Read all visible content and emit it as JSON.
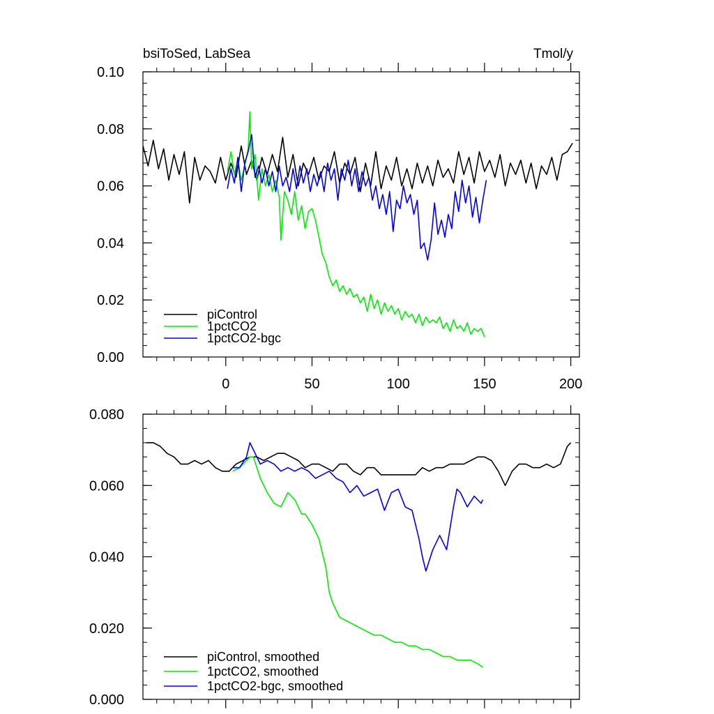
{
  "colors": {
    "piControl": "#000000",
    "1pctCO2": "#00ee00",
    "1pctCO2-bgc": "#0000ee"
  },
  "chart_data": [
    {
      "type": "line",
      "title": "bsiToSed, LabSea",
      "units": "Tmol/y",
      "xlabel": "",
      "ylabel": "",
      "xlim": [
        -48,
        205
      ],
      "ylim": [
        0.0,
        0.1
      ],
      "xticks": [
        "0",
        "50",
        "100",
        "150",
        "200"
      ],
      "xtick_values": [
        0,
        50,
        100,
        150,
        200
      ],
      "yticks": [
        "0.00",
        "0.02",
        "0.04",
        "0.06",
        "0.08",
        "0.10"
      ],
      "ytick_values": [
        0.0,
        0.02,
        0.04,
        0.06,
        0.08,
        0.1
      ],
      "legend_position": "bottom-left",
      "series": [
        {
          "name": "piControl",
          "color_key": "piControl",
          "x": [
            -48,
            -45,
            -42,
            -39,
            -36,
            -33,
            -30,
            -27,
            -24,
            -21,
            -18,
            -15,
            -12,
            -9,
            -6,
            -3,
            0,
            3,
            6,
            9,
            12,
            15,
            18,
            21,
            24,
            27,
            30,
            33,
            36,
            39,
            42,
            45,
            48,
            51,
            54,
            57,
            60,
            63,
            66,
            69,
            72,
            75,
            78,
            81,
            84,
            87,
            90,
            93,
            96,
            99,
            102,
            105,
            108,
            111,
            114,
            117,
            120,
            123,
            126,
            129,
            132,
            135,
            138,
            141,
            144,
            147,
            150,
            153,
            156,
            159,
            162,
            165,
            168,
            171,
            174,
            177,
            180,
            183,
            186,
            189,
            192,
            195,
            198,
            201
          ],
          "values": [
            0.074,
            0.067,
            0.076,
            0.066,
            0.073,
            0.062,
            0.071,
            0.064,
            0.072,
            0.054,
            0.07,
            0.062,
            0.067,
            0.065,
            0.061,
            0.07,
            0.062,
            0.068,
            0.063,
            0.074,
            0.064,
            0.069,
            0.062,
            0.07,
            0.064,
            0.071,
            0.065,
            0.077,
            0.063,
            0.071,
            0.06,
            0.068,
            0.064,
            0.07,
            0.062,
            0.067,
            0.065,
            0.072,
            0.061,
            0.068,
            0.064,
            0.07,
            0.058,
            0.068,
            0.06,
            0.072,
            0.059,
            0.067,
            0.062,
            0.07,
            0.06,
            0.066,
            0.059,
            0.068,
            0.061,
            0.067,
            0.06,
            0.069,
            0.063,
            0.066,
            0.061,
            0.072,
            0.064,
            0.07,
            0.061,
            0.072,
            0.065,
            0.069,
            0.063,
            0.071,
            0.06,
            0.068,
            0.064,
            0.069,
            0.061,
            0.068,
            0.059,
            0.067,
            0.064,
            0.07,
            0.062,
            0.071,
            0.072,
            0.075
          ]
        },
        {
          "name": "1pctCO2",
          "color_key": "1pctCO2",
          "x": [
            1,
            3,
            5,
            7,
            9,
            11,
            13,
            14,
            15,
            17,
            19,
            21,
            23,
            25,
            27,
            29,
            31,
            32,
            34,
            36,
            38,
            40,
            42,
            44,
            46,
            48,
            50,
            52,
            54,
            56,
            58,
            60,
            62,
            64,
            66,
            68,
            70,
            72,
            74,
            76,
            78,
            80,
            82,
            84,
            86,
            88,
            90,
            92,
            94,
            96,
            98,
            100,
            102,
            104,
            106,
            108,
            110,
            112,
            114,
            116,
            118,
            120,
            122,
            124,
            126,
            128,
            130,
            132,
            134,
            136,
            138,
            140,
            142,
            144,
            146,
            148,
            150
          ],
          "values": [
            0.065,
            0.072,
            0.064,
            0.069,
            0.062,
            0.067,
            0.073,
            0.086,
            0.066,
            0.071,
            0.055,
            0.066,
            0.06,
            0.064,
            0.058,
            0.062,
            0.056,
            0.041,
            0.058,
            0.055,
            0.05,
            0.058,
            0.048,
            0.053,
            0.045,
            0.051,
            0.052,
            0.048,
            0.042,
            0.036,
            0.033,
            0.028,
            0.025,
            0.027,
            0.023,
            0.025,
            0.022,
            0.024,
            0.021,
            0.022,
            0.019,
            0.021,
            0.016,
            0.022,
            0.017,
            0.02,
            0.015,
            0.019,
            0.016,
            0.018,
            0.015,
            0.017,
            0.013,
            0.016,
            0.014,
            0.015,
            0.012,
            0.015,
            0.011,
            0.014,
            0.012,
            0.013,
            0.012,
            0.014,
            0.01,
            0.012,
            0.009,
            0.013,
            0.01,
            0.011,
            0.009,
            0.012,
            0.008,
            0.01,
            0.009,
            0.01,
            0.007
          ]
        },
        {
          "name": "1pctCO2-bgc",
          "color_key": "1pctCO2-bgc",
          "x": [
            1,
            3,
            5,
            7,
            9,
            11,
            13,
            15,
            17,
            19,
            21,
            23,
            25,
            27,
            29,
            31,
            33,
            35,
            37,
            39,
            41,
            43,
            45,
            47,
            49,
            51,
            53,
            55,
            57,
            59,
            61,
            63,
            65,
            67,
            69,
            71,
            73,
            75,
            77,
            79,
            81,
            83,
            85,
            87,
            89,
            91,
            93,
            95,
            97,
            99,
            101,
            103,
            105,
            107,
            109,
            111,
            113,
            115,
            117,
            119,
            121,
            123,
            125,
            127,
            129,
            131,
            133,
            135,
            137,
            139,
            141,
            143,
            145,
            147,
            149,
            151
          ],
          "values": [
            0.059,
            0.066,
            0.061,
            0.07,
            0.058,
            0.068,
            0.072,
            0.078,
            0.063,
            0.067,
            0.061,
            0.066,
            0.06,
            0.065,
            0.058,
            0.067,
            0.06,
            0.063,
            0.058,
            0.066,
            0.059,
            0.067,
            0.061,
            0.066,
            0.058,
            0.064,
            0.06,
            0.065,
            0.058,
            0.068,
            0.062,
            0.066,
            0.055,
            0.066,
            0.062,
            0.069,
            0.06,
            0.066,
            0.058,
            0.065,
            0.06,
            0.063,
            0.055,
            0.06,
            0.052,
            0.057,
            0.05,
            0.058,
            0.044,
            0.055,
            0.052,
            0.06,
            0.054,
            0.057,
            0.05,
            0.055,
            0.038,
            0.04,
            0.034,
            0.041,
            0.054,
            0.043,
            0.048,
            0.042,
            0.05,
            0.045,
            0.058,
            0.051,
            0.062,
            0.054,
            0.06,
            0.049,
            0.056,
            0.047,
            0.055,
            0.062
          ]
        }
      ]
    },
    {
      "type": "line",
      "title": "",
      "xlabel": "",
      "ylabel": "",
      "xlim": [
        -48,
        205
      ],
      "ylim": [
        0.0,
        0.08
      ],
      "xticks": [],
      "xtick_values": [
        0,
        50,
        100,
        150,
        200
      ],
      "yticks": [
        "0.000",
        "0.020",
        "0.040",
        "0.060",
        "0.080"
      ],
      "ytick_values": [
        0.0,
        0.02,
        0.04,
        0.06,
        0.08
      ],
      "legend_position": "bottom-left",
      "series": [
        {
          "name": "piControl, smoothed",
          "color_key": "piControl",
          "x": [
            -46,
            -42,
            -38,
            -34,
            -30,
            -26,
            -22,
            -18,
            -14,
            -10,
            -6,
            -2,
            2,
            6,
            10,
            14,
            18,
            22,
            26,
            30,
            34,
            38,
            42,
            46,
            50,
            54,
            58,
            62,
            66,
            70,
            74,
            78,
            82,
            86,
            90,
            94,
            98,
            102,
            106,
            110,
            114,
            118,
            122,
            126,
            130,
            134,
            138,
            142,
            146,
            150,
            154,
            158,
            162,
            166,
            170,
            174,
            178,
            182,
            186,
            190,
            194,
            198,
            200
          ],
          "values": [
            0.072,
            0.072,
            0.071,
            0.069,
            0.068,
            0.066,
            0.066,
            0.067,
            0.066,
            0.067,
            0.065,
            0.064,
            0.064,
            0.066,
            0.067,
            0.068,
            0.068,
            0.067,
            0.068,
            0.069,
            0.069,
            0.068,
            0.067,
            0.065,
            0.066,
            0.066,
            0.065,
            0.064,
            0.066,
            0.066,
            0.064,
            0.063,
            0.065,
            0.065,
            0.063,
            0.063,
            0.063,
            0.063,
            0.063,
            0.063,
            0.065,
            0.064,
            0.065,
            0.065,
            0.066,
            0.066,
            0.066,
            0.067,
            0.068,
            0.068,
            0.067,
            0.064,
            0.06,
            0.064,
            0.066,
            0.066,
            0.065,
            0.065,
            0.066,
            0.065,
            0.066,
            0.071,
            0.072
          ]
        },
        {
          "name": "1pctCO2, smoothed",
          "color_key": "1pctCO2",
          "x": [
            4,
            8,
            12,
            14,
            16,
            20,
            24,
            28,
            32,
            36,
            40,
            44,
            46,
            50,
            54,
            58,
            60,
            62,
            64,
            66,
            70,
            74,
            78,
            82,
            86,
            90,
            94,
            98,
            102,
            106,
            110,
            114,
            118,
            122,
            126,
            130,
            134,
            138,
            142,
            146,
            149
          ],
          "values": [
            0.064,
            0.065,
            0.067,
            0.068,
            0.068,
            0.062,
            0.058,
            0.055,
            0.054,
            0.058,
            0.056,
            0.052,
            0.052,
            0.049,
            0.045,
            0.037,
            0.03,
            0.027,
            0.025,
            0.023,
            0.022,
            0.021,
            0.02,
            0.019,
            0.018,
            0.018,
            0.017,
            0.016,
            0.016,
            0.015,
            0.015,
            0.014,
            0.014,
            0.013,
            0.012,
            0.012,
            0.011,
            0.011,
            0.011,
            0.01,
            0.009
          ]
        },
        {
          "name": "1pctCO2-bgc, smoothed",
          "color_key": "1pctCO2-bgc",
          "x": [
            4,
            8,
            12,
            14,
            16,
            20,
            24,
            28,
            32,
            36,
            40,
            44,
            48,
            52,
            56,
            60,
            64,
            68,
            72,
            76,
            80,
            84,
            88,
            92,
            96,
            100,
            104,
            108,
            112,
            114,
            116,
            120,
            124,
            128,
            132,
            134,
            136,
            140,
            144,
            148,
            149
          ],
          "values": [
            0.065,
            0.065,
            0.068,
            0.072,
            0.07,
            0.066,
            0.067,
            0.066,
            0.064,
            0.065,
            0.064,
            0.065,
            0.064,
            0.062,
            0.063,
            0.064,
            0.062,
            0.061,
            0.058,
            0.06,
            0.057,
            0.058,
            0.059,
            0.053,
            0.058,
            0.059,
            0.054,
            0.053,
            0.045,
            0.04,
            0.036,
            0.042,
            0.046,
            0.042,
            0.054,
            0.059,
            0.058,
            0.054,
            0.057,
            0.055,
            0.056
          ]
        }
      ]
    }
  ]
}
